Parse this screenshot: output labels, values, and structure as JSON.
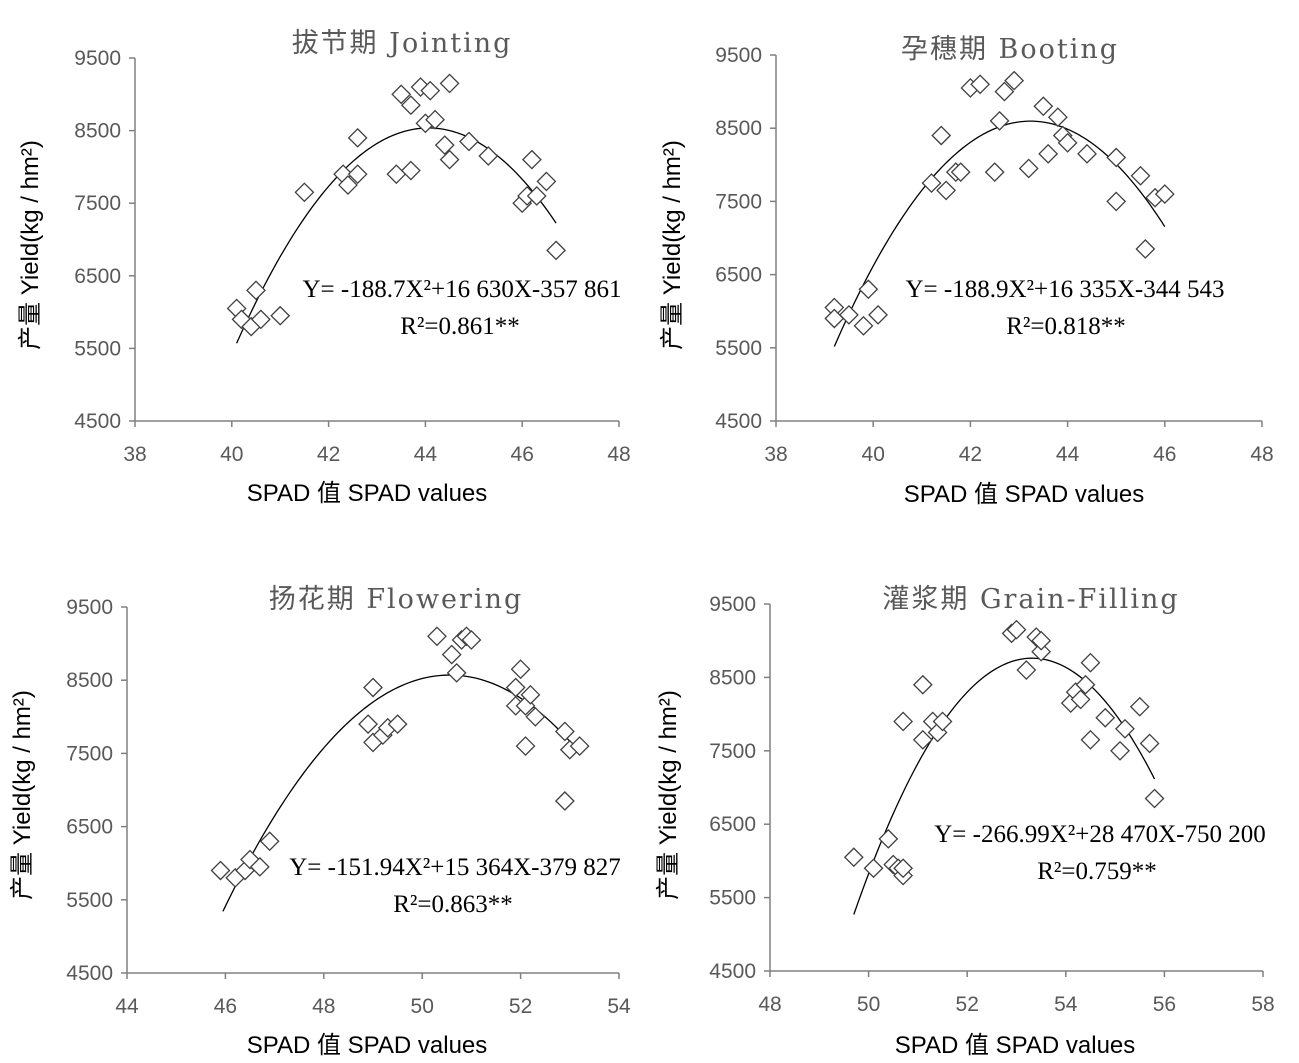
{
  "chart_data": [
    {
      "type": "scatter",
      "title": "拔节期 Jointing",
      "xlabel": "SPAD 值 SPAD values",
      "ylabel": "产量 Yield(kg / hm²)",
      "xlim": [
        38,
        48
      ],
      "ylim": [
        4500,
        9500
      ],
      "xticks": [
        38,
        40,
        42,
        44,
        46,
        48
      ],
      "yticks": [
        4500,
        5500,
        6500,
        7500,
        8500,
        9500
      ],
      "equation": "Y= -188.7X²+16 630X-357 861",
      "r2": "R²=0.861**",
      "fit": {
        "a": -188.7,
        "b": 16630,
        "c": -357861,
        "xmin": 40.1,
        "xmax": 46.7
      },
      "points": [
        {
          "x": 40.1,
          "y": 6050
        },
        {
          "x": 40.2,
          "y": 5900
        },
        {
          "x": 40.4,
          "y": 5800
        },
        {
          "x": 40.5,
          "y": 6300
        },
        {
          "x": 40.6,
          "y": 5900
        },
        {
          "x": 41.0,
          "y": 5950
        },
        {
          "x": 41.5,
          "y": 7650
        },
        {
          "x": 42.3,
          "y": 7900
        },
        {
          "x": 42.4,
          "y": 7750
        },
        {
          "x": 42.6,
          "y": 8400
        },
        {
          "x": 42.6,
          "y": 7900
        },
        {
          "x": 43.4,
          "y": 7900
        },
        {
          "x": 43.5,
          "y": 9000
        },
        {
          "x": 43.7,
          "y": 8850
        },
        {
          "x": 43.7,
          "y": 7950
        },
        {
          "x": 43.9,
          "y": 9100
        },
        {
          "x": 44.0,
          "y": 8600
        },
        {
          "x": 44.1,
          "y": 9050
        },
        {
          "x": 44.2,
          "y": 8650
        },
        {
          "x": 44.4,
          "y": 8300
        },
        {
          "x": 44.5,
          "y": 9150
        },
        {
          "x": 44.5,
          "y": 8100
        },
        {
          "x": 44.9,
          "y": 8350
        },
        {
          "x": 45.3,
          "y": 8150
        },
        {
          "x": 46.0,
          "y": 7500
        },
        {
          "x": 46.1,
          "y": 7600
        },
        {
          "x": 46.2,
          "y": 8100
        },
        {
          "x": 46.3,
          "y": 7600
        },
        {
          "x": 46.5,
          "y": 7800
        },
        {
          "x": 46.7,
          "y": 6850
        }
      ]
    },
    {
      "type": "scatter",
      "title": "孕穗期 Booting",
      "xlabel": "SPAD 值 SPAD values",
      "ylabel": "产量 Yield(kg / hm²)",
      "xlim": [
        38,
        48
      ],
      "ylim": [
        4500,
        9500
      ],
      "xticks": [
        38,
        40,
        42,
        44,
        46,
        48
      ],
      "yticks": [
        4500,
        5500,
        6500,
        7500,
        8500,
        9500
      ],
      "equation": "Y= -188.9X²+16 335X-344 543",
      "r2": "R²=0.818**",
      "fit": {
        "a": -188.9,
        "b": 16335,
        "c": -344543,
        "xmin": 39.2,
        "xmax": 46.0
      },
      "points": [
        {
          "x": 39.2,
          "y": 6050
        },
        {
          "x": 39.2,
          "y": 5900
        },
        {
          "x": 39.5,
          "y": 5950
        },
        {
          "x": 39.8,
          "y": 5800
        },
        {
          "x": 39.9,
          "y": 6300
        },
        {
          "x": 40.1,
          "y": 5950
        },
        {
          "x": 41.2,
          "y": 7750
        },
        {
          "x": 41.4,
          "y": 8400
        },
        {
          "x": 41.5,
          "y": 7650
        },
        {
          "x": 41.7,
          "y": 7900
        },
        {
          "x": 41.8,
          "y": 7900
        },
        {
          "x": 42.0,
          "y": 9050
        },
        {
          "x": 42.2,
          "y": 9100
        },
        {
          "x": 42.5,
          "y": 7900
        },
        {
          "x": 42.6,
          "y": 8600
        },
        {
          "x": 42.7,
          "y": 9000
        },
        {
          "x": 42.9,
          "y": 9150
        },
        {
          "x": 43.2,
          "y": 7950
        },
        {
          "x": 43.5,
          "y": 8800
        },
        {
          "x": 43.6,
          "y": 8150
        },
        {
          "x": 43.8,
          "y": 8650
        },
        {
          "x": 43.9,
          "y": 8400
        },
        {
          "x": 44.0,
          "y": 8300
        },
        {
          "x": 44.4,
          "y": 8150
        },
        {
          "x": 45.0,
          "y": 8100
        },
        {
          "x": 45.0,
          "y": 7500
        },
        {
          "x": 45.5,
          "y": 7850
        },
        {
          "x": 45.6,
          "y": 6850
        },
        {
          "x": 45.8,
          "y": 7550
        },
        {
          "x": 46.0,
          "y": 7600
        }
      ]
    },
    {
      "type": "scatter",
      "title": "扬花期 Flowering",
      "xlabel": "SPAD 值 SPAD values",
      "ylabel": "产量 Yield(kg / hm²)",
      "xlim": [
        44,
        54
      ],
      "ylim": [
        4500,
        9500
      ],
      "xticks": [
        44,
        46,
        48,
        50,
        52,
        54
      ],
      "yticks": [
        4500,
        5500,
        6500,
        7500,
        8500,
        9500
      ],
      "equation": "Y= -151.94X²+15 364X-379 827",
      "r2": "R²=0.863**",
      "fit": {
        "a": -151.94,
        "b": 15364,
        "c": -379827,
        "xmin": 45.95,
        "xmax": 53.15
      },
      "points": [
        {
          "x": 45.9,
          "y": 5900
        },
        {
          "x": 46.2,
          "y": 5800
        },
        {
          "x": 46.4,
          "y": 5900
        },
        {
          "x": 46.5,
          "y": 6050
        },
        {
          "x": 46.7,
          "y": 5950
        },
        {
          "x": 46.9,
          "y": 6300
        },
        {
          "x": 48.9,
          "y": 7900
        },
        {
          "x": 49.0,
          "y": 8400
        },
        {
          "x": 49.0,
          "y": 7650
        },
        {
          "x": 49.2,
          "y": 7750
        },
        {
          "x": 49.3,
          "y": 7850
        },
        {
          "x": 49.5,
          "y": 7900
        },
        {
          "x": 50.3,
          "y": 9100
        },
        {
          "x": 50.6,
          "y": 8850
        },
        {
          "x": 50.7,
          "y": 8600
        },
        {
          "x": 50.8,
          "y": 9050
        },
        {
          "x": 50.9,
          "y": 9100
        },
        {
          "x": 51.0,
          "y": 9050
        },
        {
          "x": 51.9,
          "y": 8150
        },
        {
          "x": 51.9,
          "y": 8400
        },
        {
          "x": 52.0,
          "y": 8650
        },
        {
          "x": 52.1,
          "y": 7600
        },
        {
          "x": 52.1,
          "y": 8150
        },
        {
          "x": 52.2,
          "y": 8300
        },
        {
          "x": 52.3,
          "y": 8000
        },
        {
          "x": 52.9,
          "y": 6850
        },
        {
          "x": 52.9,
          "y": 7800
        },
        {
          "x": 53.0,
          "y": 7550
        },
        {
          "x": 53.2,
          "y": 7600
        }
      ]
    },
    {
      "type": "scatter",
      "title": "灌浆期 Grain-Filling",
      "xlabel": "SPAD 值 SPAD values",
      "ylabel": "产量 Yield(kg / hm²)",
      "xlim": [
        48,
        58
      ],
      "ylim": [
        4500,
        9500
      ],
      "xticks": [
        48,
        50,
        52,
        54,
        56,
        58
      ],
      "yticks": [
        4500,
        5500,
        6500,
        7500,
        8500,
        9500
      ],
      "equation": "Y= -266.99X²+28 470X-750 200",
      "r2": "R²=0.759**",
      "fit": {
        "a": -266.99,
        "b": 28470,
        "c": -750200,
        "xmin": 49.7,
        "xmax": 55.8
      },
      "points": [
        {
          "x": 49.7,
          "y": 6050
        },
        {
          "x": 50.1,
          "y": 5900
        },
        {
          "x": 50.4,
          "y": 6300
        },
        {
          "x": 50.5,
          "y": 5950
        },
        {
          "x": 50.6,
          "y": 5900
        },
        {
          "x": 50.7,
          "y": 5800
        },
        {
          "x": 50.7,
          "y": 5900
        },
        {
          "x": 50.7,
          "y": 7900
        },
        {
          "x": 51.1,
          "y": 8400
        },
        {
          "x": 51.1,
          "y": 7650
        },
        {
          "x": 51.3,
          "y": 7900
        },
        {
          "x": 51.4,
          "y": 7750
        },
        {
          "x": 51.5,
          "y": 7900
        },
        {
          "x": 52.9,
          "y": 9100
        },
        {
          "x": 53.0,
          "y": 9150
        },
        {
          "x": 53.2,
          "y": 8600
        },
        {
          "x": 53.4,
          "y": 9050
        },
        {
          "x": 53.5,
          "y": 8850
        },
        {
          "x": 53.5,
          "y": 9000
        },
        {
          "x": 54.1,
          "y": 8150
        },
        {
          "x": 54.2,
          "y": 8300
        },
        {
          "x": 54.3,
          "y": 8200
        },
        {
          "x": 54.4,
          "y": 8400
        },
        {
          "x": 54.5,
          "y": 8700
        },
        {
          "x": 54.5,
          "y": 7650
        },
        {
          "x": 54.8,
          "y": 7950
        },
        {
          "x": 55.1,
          "y": 7500
        },
        {
          "x": 55.2,
          "y": 7800
        },
        {
          "x": 55.5,
          "y": 8100
        },
        {
          "x": 55.7,
          "y": 7600
        },
        {
          "x": 55.8,
          "y": 6850
        }
      ]
    }
  ]
}
